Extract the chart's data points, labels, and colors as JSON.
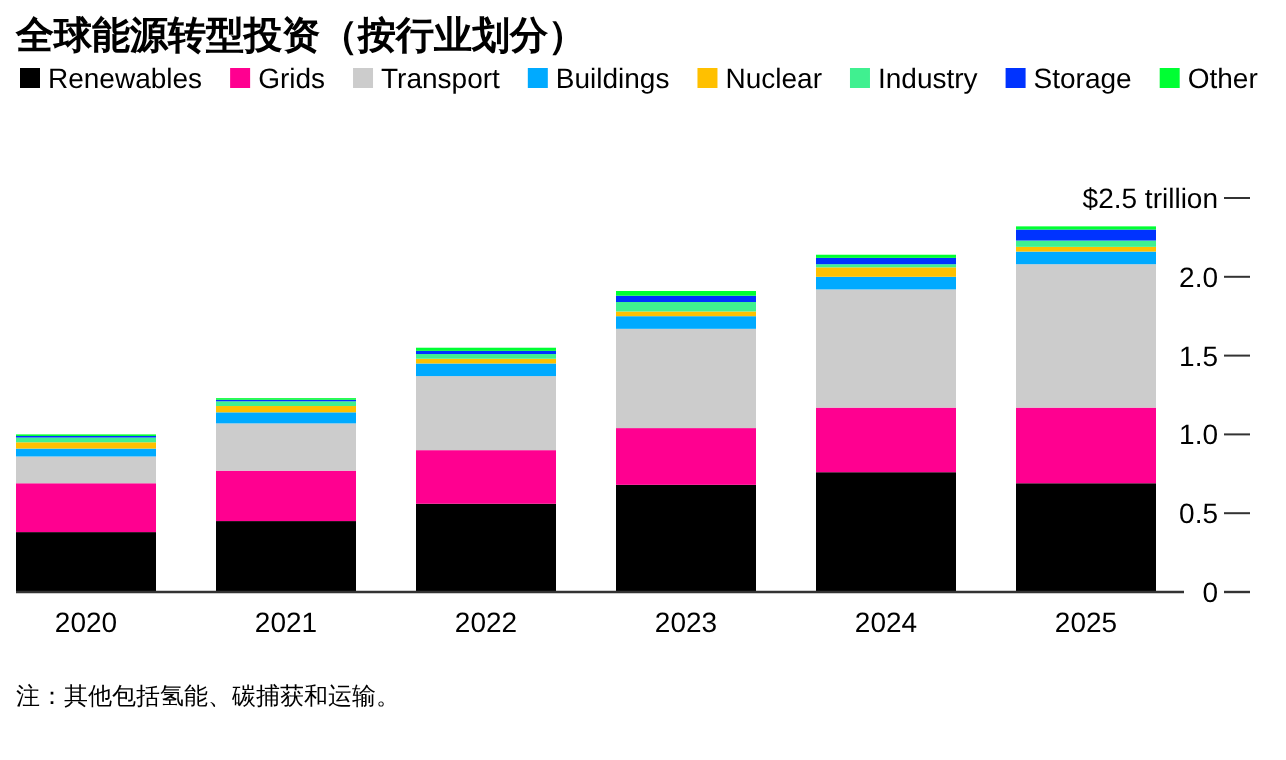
{
  "chart_data": {
    "type": "bar",
    "stacked": true,
    "title": "全球能源转型投资（按行业划分）",
    "categories": [
      "2020",
      "2021",
      "2022",
      "2023",
      "2024",
      "2025"
    ],
    "series": [
      {
        "name": "Renewables",
        "color": "#000000",
        "values": [
          0.38,
          0.45,
          0.56,
          0.68,
          0.76,
          0.69
        ]
      },
      {
        "name": "Grids",
        "color": "#ff0090",
        "values": [
          0.31,
          0.32,
          0.34,
          0.36,
          0.41,
          0.48
        ]
      },
      {
        "name": "Transport",
        "color": "#cccccc",
        "values": [
          0.17,
          0.3,
          0.47,
          0.63,
          0.75,
          0.91
        ]
      },
      {
        "name": "Buildings",
        "color": "#00aaff",
        "values": [
          0.05,
          0.07,
          0.08,
          0.08,
          0.08,
          0.08
        ]
      },
      {
        "name": "Nuclear",
        "color": "#ffc000",
        "values": [
          0.04,
          0.04,
          0.03,
          0.03,
          0.06,
          0.03
        ]
      },
      {
        "name": "Industry",
        "color": "#40f090",
        "values": [
          0.03,
          0.03,
          0.03,
          0.06,
          0.02,
          0.04
        ]
      },
      {
        "name": "Storage",
        "color": "#0033ff",
        "values": [
          0.01,
          0.01,
          0.02,
          0.04,
          0.04,
          0.07
        ]
      },
      {
        "name": "Other",
        "color": "#00ff33",
        "values": [
          0.01,
          0.01,
          0.02,
          0.03,
          0.02,
          0.02
        ]
      }
    ],
    "ylim": [
      0,
      2.5
    ],
    "yticks": [
      0,
      0.5,
      {
        "value": 1,
        "label": "1.0"
      },
      1.5,
      {
        "value": 2,
        "label": "2.0"
      },
      {
        "value": 2.5,
        "label": "$2.5 trillion"
      }
    ],
    "legend": "top",
    "grid": false,
    "annotations": [
      "注：其他包括氢能、碳捕获和运输。"
    ]
  }
}
